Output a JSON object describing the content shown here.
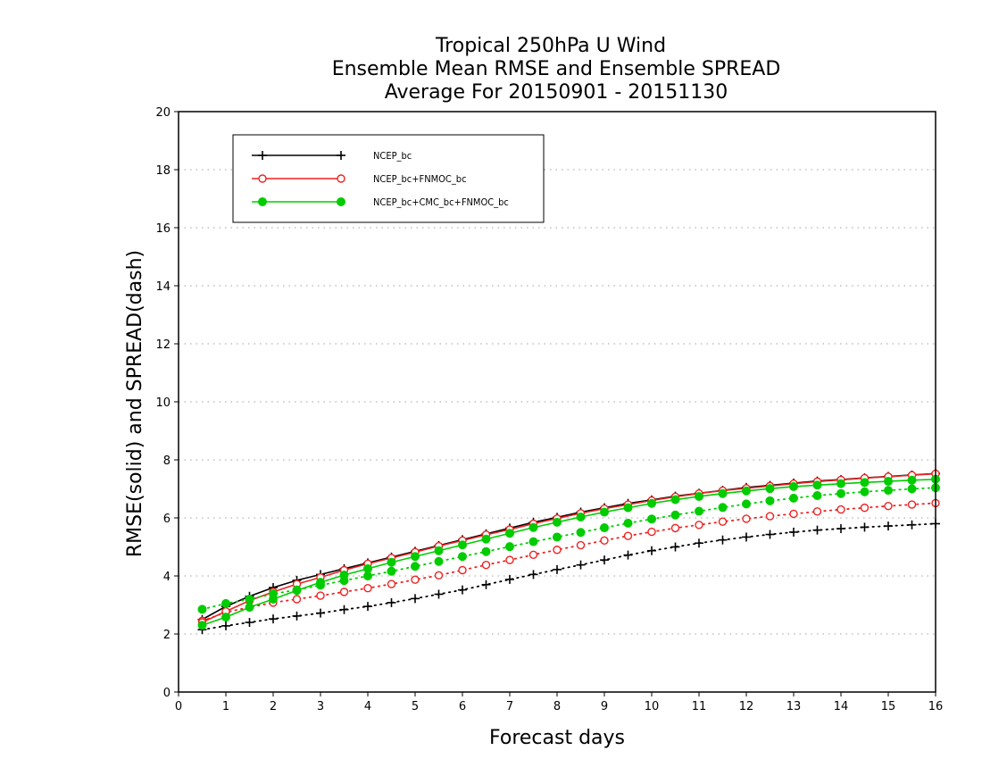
{
  "chart_data": {
    "type": "line",
    "title": [
      "Tropical 250hPa U Wind",
      "Ensemble Mean RMSE and Ensemble SPREAD",
      "Average For 20150901 - 20151130"
    ],
    "xlabel": "Forecast days",
    "ylabel": "RMSE(solid) and SPREAD(dash)",
    "xlim": [
      0,
      16
    ],
    "ylim": [
      0,
      20
    ],
    "xticks": [
      0,
      1,
      2,
      3,
      4,
      5,
      6,
      7,
      8,
      9,
      10,
      11,
      12,
      13,
      14,
      15,
      16
    ],
    "yticks": [
      0,
      2,
      4,
      6,
      8,
      10,
      12,
      14,
      16,
      18,
      20
    ],
    "grid": true,
    "legend_position": "top-left",
    "x": [
      0.5,
      1,
      1.5,
      2,
      2.5,
      3,
      3.5,
      4,
      4.5,
      5,
      5.5,
      6,
      6.5,
      7,
      7.5,
      8,
      8.5,
      9,
      9.5,
      10,
      10.5,
      11,
      11.5,
      12,
      12.5,
      13,
      13.5,
      14,
      14.5,
      15,
      15.5,
      16
    ],
    "series": [
      {
        "name": "NCEP_bc",
        "color": "#000000",
        "marker": "plus",
        "rmse": [
          2.5,
          2.95,
          3.3,
          3.6,
          3.85,
          4.05,
          4.25,
          4.45,
          4.65,
          4.85,
          5.05,
          5.25,
          5.45,
          5.65,
          5.85,
          6.02,
          6.2,
          6.35,
          6.5,
          6.62,
          6.75,
          6.85,
          6.95,
          7.05,
          7.12,
          7.2,
          7.27,
          7.32,
          7.38,
          7.43,
          7.48,
          7.53
        ],
        "spread": [
          2.15,
          2.28,
          2.4,
          2.52,
          2.62,
          2.72,
          2.84,
          2.95,
          3.08,
          3.22,
          3.37,
          3.52,
          3.7,
          3.88,
          4.05,
          4.22,
          4.38,
          4.55,
          4.72,
          4.87,
          5.0,
          5.13,
          5.24,
          5.34,
          5.43,
          5.51,
          5.58,
          5.63,
          5.68,
          5.72,
          5.76,
          5.8
        ]
      },
      {
        "name": "NCEP_bc+FNMOC_bc",
        "color": "#ee2222",
        "marker": "open-circle",
        "rmse": [
          2.4,
          2.78,
          3.15,
          3.45,
          3.72,
          3.95,
          4.2,
          4.42,
          4.62,
          4.82,
          5.03,
          5.22,
          5.42,
          5.6,
          5.8,
          5.98,
          6.16,
          6.32,
          6.46,
          6.6,
          6.73,
          6.84,
          6.94,
          7.02,
          7.1,
          7.18,
          7.25,
          7.31,
          7.37,
          7.42,
          7.47,
          7.52
        ],
        "spread": [
          2.45,
          2.75,
          2.92,
          3.08,
          3.2,
          3.32,
          3.45,
          3.58,
          3.72,
          3.87,
          4.02,
          4.2,
          4.38,
          4.55,
          4.73,
          4.9,
          5.06,
          5.22,
          5.38,
          5.52,
          5.65,
          5.76,
          5.87,
          5.97,
          6.06,
          6.14,
          6.22,
          6.29,
          6.35,
          6.41,
          6.46,
          6.51
        ]
      },
      {
        "name": "NCEP_bc+CMC_bc+FNMOC_bc",
        "color": "#00cc00",
        "marker": "filled-circle",
        "rmse": [
          2.3,
          2.58,
          2.92,
          3.2,
          3.5,
          3.78,
          4.03,
          4.25,
          4.47,
          4.67,
          4.87,
          5.07,
          5.27,
          5.47,
          5.67,
          5.85,
          6.03,
          6.2,
          6.35,
          6.5,
          6.63,
          6.74,
          6.84,
          6.93,
          7.01,
          7.08,
          7.13,
          7.18,
          7.22,
          7.26,
          7.3,
          7.33
        ],
        "spread": [
          2.85,
          3.05,
          3.2,
          3.38,
          3.52,
          3.68,
          3.84,
          4.0,
          4.16,
          4.33,
          4.5,
          4.67,
          4.84,
          5.01,
          5.18,
          5.34,
          5.5,
          5.66,
          5.82,
          5.96,
          6.1,
          6.23,
          6.36,
          6.48,
          6.59,
          6.68,
          6.77,
          6.84,
          6.9,
          6.95,
          7.0,
          7.04
        ]
      }
    ]
  }
}
